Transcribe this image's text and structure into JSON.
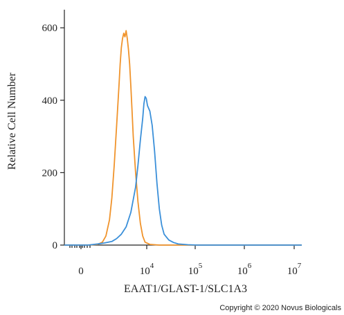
{
  "chart_data": {
    "type": "line",
    "xlabel": "EAAT1/GLAST-1/SLC1A3",
    "ylabel": "Relative Cell Number",
    "ylim": [
      0,
      650
    ],
    "y_ticks": [
      0,
      200,
      400,
      600
    ],
    "x_tick_labels": [
      {
        "base": "0",
        "exp": ""
      },
      {
        "base": "10",
        "exp": "4"
      },
      {
        "base": "10",
        "exp": "5"
      },
      {
        "base": "10",
        "exp": "6"
      },
      {
        "base": "10",
        "exp": "7"
      }
    ],
    "grid": false,
    "series": [
      {
        "color": "#f0932b",
        "points": [
          [
            0.0,
            0
          ],
          [
            0.1,
            0
          ],
          [
            0.14,
            2
          ],
          [
            0.16,
            8
          ],
          [
            0.175,
            25
          ],
          [
            0.19,
            70
          ],
          [
            0.2,
            130
          ],
          [
            0.21,
            220
          ],
          [
            0.22,
            330
          ],
          [
            0.23,
            440
          ],
          [
            0.235,
            500
          ],
          [
            0.24,
            545
          ],
          [
            0.245,
            570
          ],
          [
            0.25,
            585
          ],
          [
            0.255,
            575
          ],
          [
            0.26,
            592
          ],
          [
            0.265,
            570
          ],
          [
            0.27,
            540
          ],
          [
            0.275,
            500
          ],
          [
            0.28,
            440
          ],
          [
            0.285,
            370
          ],
          [
            0.29,
            300
          ],
          [
            0.3,
            200
          ],
          [
            0.31,
            120
          ],
          [
            0.32,
            60
          ],
          [
            0.33,
            25
          ],
          [
            0.34,
            8
          ],
          [
            0.36,
            2
          ],
          [
            0.4,
            0
          ],
          [
            1.0,
            0
          ]
        ]
      },
      {
        "color": "#3a8fd9",
        "points": [
          [
            0.0,
            0
          ],
          [
            0.1,
            0
          ],
          [
            0.14,
            3
          ],
          [
            0.17,
            6
          ],
          [
            0.2,
            10
          ],
          [
            0.22,
            18
          ],
          [
            0.24,
            30
          ],
          [
            0.26,
            50
          ],
          [
            0.28,
            90
          ],
          [
            0.3,
            160
          ],
          [
            0.31,
            220
          ],
          [
            0.32,
            290
          ],
          [
            0.33,
            350
          ],
          [
            0.335,
            390
          ],
          [
            0.34,
            410
          ],
          [
            0.345,
            405
          ],
          [
            0.35,
            385
          ],
          [
            0.36,
            370
          ],
          [
            0.37,
            330
          ],
          [
            0.38,
            260
          ],
          [
            0.39,
            170
          ],
          [
            0.4,
            100
          ],
          [
            0.41,
            55
          ],
          [
            0.42,
            30
          ],
          [
            0.44,
            14
          ],
          [
            0.46,
            7
          ],
          [
            0.48,
            3
          ],
          [
            0.52,
            1
          ],
          [
            0.56,
            0
          ],
          [
            1.0,
            0
          ]
        ]
      }
    ]
  },
  "copyright": "Copyright © 2020 Novus Biologicals"
}
